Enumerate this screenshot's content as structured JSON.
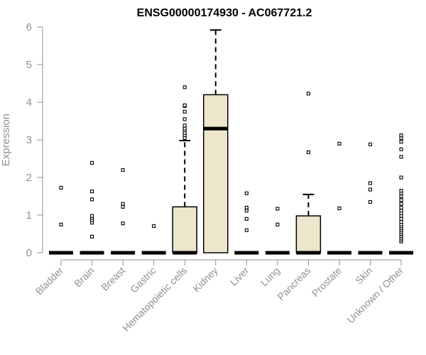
{
  "chart_data": {
    "type": "boxplot",
    "title": "ENSG00000174930 - AC067721.2",
    "ylabel": "Expression",
    "xlabel": "",
    "ylim": [
      0,
      6
    ],
    "yticks": [
      "0",
      "1",
      "2",
      "3",
      "4",
      "5",
      "6"
    ],
    "categories": [
      "Bladder",
      "Brain",
      "Breast",
      "Gastric",
      "Hematopoietic cells",
      "Kidney",
      "Liver",
      "Lung",
      "Pancreas",
      "Prostate",
      "Skin",
      "Unknown / Other"
    ],
    "box_fill": "#ede6cc",
    "boxes": [
      {
        "q1": 0,
        "median": 0,
        "q3": 0,
        "whisker_low": 0,
        "whisker_high": 0,
        "outliers": [
          0.75,
          1.73
        ]
      },
      {
        "q1": 0,
        "median": 0,
        "q3": 0,
        "whisker_low": 0,
        "whisker_high": 0,
        "outliers": [
          0.43,
          0.8,
          0.87,
          0.93,
          0.98,
          1.42,
          1.63,
          2.39
        ]
      },
      {
        "q1": 0,
        "median": 0,
        "q3": 0,
        "whisker_low": 0,
        "whisker_high": 0,
        "outliers": [
          0.78,
          1.22,
          1.3,
          2.2
        ]
      },
      {
        "q1": 0,
        "median": 0,
        "q3": 0,
        "whisker_low": 0,
        "whisker_high": 0,
        "outliers": [
          0.71
        ]
      },
      {
        "q1": 0,
        "median": 0,
        "q3": 1.22,
        "whisker_low": 0,
        "whisker_high": 2.98,
        "outliers": [
          3.05,
          3.12,
          3.18,
          3.25,
          3.3,
          3.38,
          3.55,
          3.75,
          3.9,
          3.92,
          4.4
        ]
      },
      {
        "q1": 0,
        "median": 3.3,
        "q3": 4.2,
        "whisker_low": 0,
        "whisker_high": 5.92,
        "outliers": []
      },
      {
        "q1": 0,
        "median": 0,
        "q3": 0,
        "whisker_low": 0,
        "whisker_high": 0,
        "outliers": [
          0.6,
          0.9,
          1.12,
          1.2,
          1.58
        ]
      },
      {
        "q1": 0,
        "median": 0,
        "q3": 0,
        "whisker_low": 0,
        "whisker_high": 0,
        "outliers": [
          0.75,
          1.17
        ]
      },
      {
        "q1": 0,
        "median": 0,
        "q3": 0.98,
        "whisker_low": 0,
        "whisker_high": 1.55,
        "outliers": [
          2.67,
          4.23
        ]
      },
      {
        "q1": 0,
        "median": 0,
        "q3": 0,
        "whisker_low": 0,
        "whisker_high": 0,
        "outliers": [
          1.18,
          2.9
        ]
      },
      {
        "q1": 0,
        "median": 0,
        "q3": 0,
        "whisker_low": 0,
        "whisker_high": 0,
        "outliers": [
          1.35,
          1.68,
          1.85,
          2.88
        ]
      },
      {
        "q1": 0,
        "median": 0,
        "q3": 0,
        "whisker_low": 0,
        "whisker_high": 0,
        "outliers": [
          0.3,
          0.35,
          0.4,
          0.45,
          0.5,
          0.55,
          0.6,
          0.65,
          0.7,
          0.75,
          0.82,
          0.9,
          0.98,
          1.05,
          1.12,
          1.2,
          1.3,
          1.4,
          1.5,
          1.58,
          1.65,
          2.0,
          2.55,
          2.75,
          2.95,
          3.05,
          3.12
        ]
      }
    ]
  }
}
